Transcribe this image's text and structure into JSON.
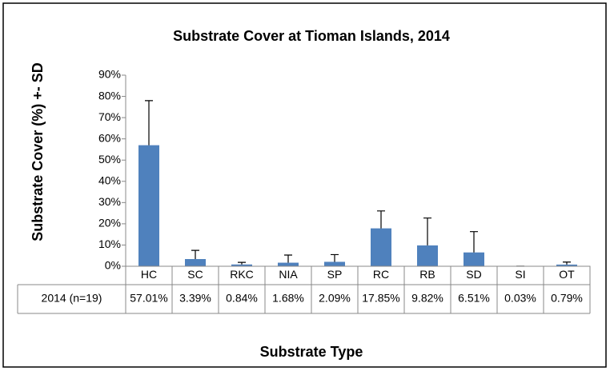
{
  "chart_data": {
    "type": "bar",
    "title": "Substrate Cover at Tioman Islands, 2014",
    "y_label": "Substrate Cover (%) +- SD",
    "x_label": "Substrate Type",
    "categories": [
      "HC",
      "SC",
      "RKC",
      "NIA",
      "SP",
      "RC",
      "RB",
      "SD",
      "SI",
      "OT"
    ],
    "series": [
      {
        "name": "2014 (n=19)",
        "color": "#4f81bd",
        "values": [
          57.01,
          3.39,
          0.84,
          1.68,
          2.09,
          17.85,
          9.82,
          6.51,
          0.03,
          0.79
        ],
        "value_labels": [
          "57.01%",
          "3.39%",
          "0.84%",
          "1.68%",
          "2.09%",
          "17.85%",
          "9.82%",
          "6.51%",
          "0.03%",
          "0.79%"
        ],
        "errors": [
          21,
          4.1,
          1,
          3.6,
          3.4,
          8.2,
          12.9,
          9.8,
          0,
          1.2
        ]
      }
    ],
    "ylim": [
      0,
      90
    ],
    "yticks": [
      {
        "value": 0,
        "label": "0%"
      },
      {
        "value": 10,
        "label": "10%"
      },
      {
        "value": 20,
        "label": "20%"
      },
      {
        "value": 30,
        "label": "30%"
      },
      {
        "value": 40,
        "label": "40%"
      },
      {
        "value": 50,
        "label": "50%"
      },
      {
        "value": 60,
        "label": "60%"
      },
      {
        "value": 70,
        "label": "70%"
      },
      {
        "value": 80,
        "label": "80%"
      },
      {
        "value": 90,
        "label": "90%"
      }
    ],
    "data_table": true
  }
}
